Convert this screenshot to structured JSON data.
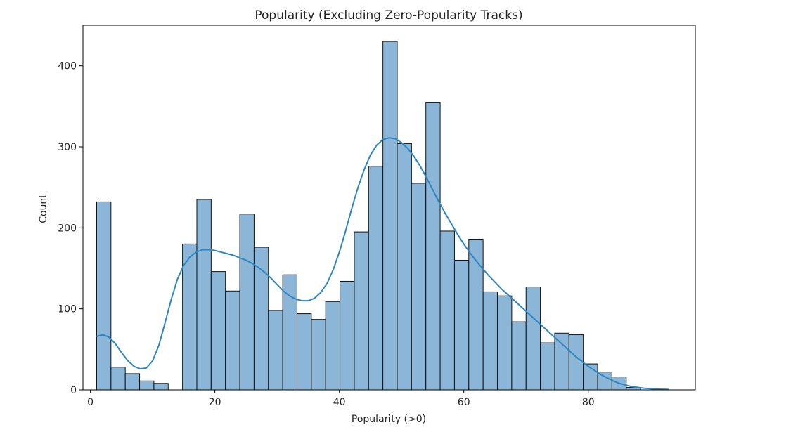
{
  "chart_data": {
    "type": "bar",
    "title": "Popularity (Excluding Zero-Popularity Tracks)",
    "xlabel": "Popularity (>0)",
    "ylabel": "Count",
    "xlim": [
      -1.2,
      97.2
    ],
    "ylim": [
      0,
      450
    ],
    "xticks": [
      0,
      20,
      40,
      60,
      80
    ],
    "yticks": [
      0,
      100,
      200,
      300,
      400
    ],
    "bin_start": 1,
    "bin_width": 2.3,
    "values": [
      232,
      28,
      20,
      11,
      8,
      0,
      180,
      235,
      146,
      122,
      217,
      176,
      98,
      142,
      94,
      87,
      109,
      134,
      195,
      276,
      430,
      304,
      255,
      355,
      196,
      160,
      186,
      121,
      116,
      84,
      127,
      58,
      70,
      68,
      32,
      22,
      16,
      3,
      0
    ],
    "kde": {
      "x": [
        1,
        2,
        3,
        4,
        5,
        6,
        7,
        8,
        9,
        10,
        11,
        12,
        13,
        14,
        15,
        16,
        17,
        18,
        19,
        20,
        21,
        22,
        23,
        24,
        25,
        26,
        27,
        28,
        29,
        30,
        31,
        32,
        33,
        34,
        35,
        36,
        37,
        38,
        39,
        40,
        41,
        42,
        43,
        44,
        45,
        46,
        47,
        48,
        49,
        50,
        51,
        52,
        53,
        54,
        55,
        56,
        57,
        58,
        59,
        60,
        61,
        62,
        63,
        64,
        65,
        66,
        67,
        68,
        69,
        70,
        71,
        72,
        73,
        74,
        75,
        76,
        77,
        78,
        79,
        80,
        81,
        82,
        83,
        84,
        85,
        86,
        87,
        88,
        89,
        90,
        91,
        92,
        93
      ],
      "y": [
        66,
        68,
        65,
        57,
        46,
        36,
        29,
        26,
        27,
        36,
        55,
        83,
        112,
        137,
        154,
        164,
        170,
        173,
        173,
        172,
        170,
        168,
        166,
        163,
        160,
        156,
        151,
        145,
        138,
        130,
        122,
        116,
        112,
        110,
        110,
        113,
        120,
        131,
        148,
        170,
        196,
        224,
        250,
        272,
        290,
        302,
        309,
        311,
        310,
        305,
        298,
        288,
        276,
        262,
        247,
        232,
        218,
        205,
        192,
        180,
        169,
        159,
        150,
        141,
        133,
        125,
        118,
        111,
        104,
        97,
        90,
        83,
        76,
        69,
        62,
        55,
        48,
        41,
        35,
        29,
        24,
        19,
        15,
        11,
        8,
        6,
        4,
        3,
        2,
        1.5,
        1,
        0.8,
        0.5
      ]
    },
    "colors": {
      "bar_fill": "#8bb6d8",
      "bar_edge": "#111111",
      "kde_line": "#2e86c1"
    },
    "grid": false,
    "legend": "none"
  }
}
